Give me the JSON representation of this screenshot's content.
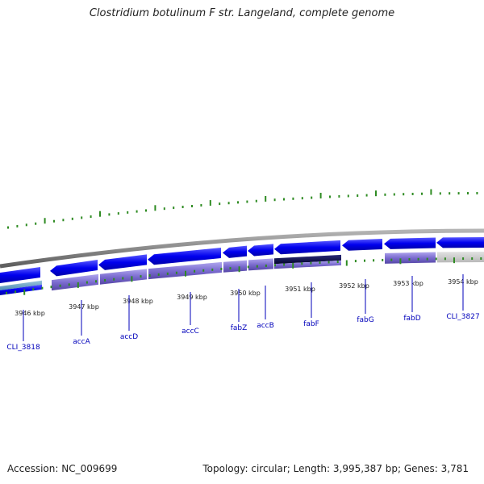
{
  "title": "Clostridium botulinum F str. Langeland, complete genome",
  "footer": {
    "accession": "Accession: NC_009699",
    "topology": "Topology: circular; Length: 3,995,387 bp; Genes: 3,781"
  },
  "kbp_labels": [
    "3946 kbp",
    "3947 kbp",
    "3948 kbp",
    "3949 kbp",
    "3950 kbp",
    "3951 kbp",
    "3952 kbp",
    "3953 kbp",
    "3954 kbp"
  ],
  "genes": [
    "CLI_3818",
    "accA",
    "accD",
    "accC",
    "fabZ",
    "accB",
    "fabF",
    "fabG",
    "fabD",
    "CLI_3827"
  ],
  "colors": {
    "tick": "#2e8b22",
    "backbone": "#888888",
    "forward": "#0000ee",
    "reverse": "#7b6ccf",
    "highlight": "#0a0a50",
    "unassigned": "#c8c8c8",
    "other": "#6aa3c6",
    "label": "#0000bb"
  }
}
